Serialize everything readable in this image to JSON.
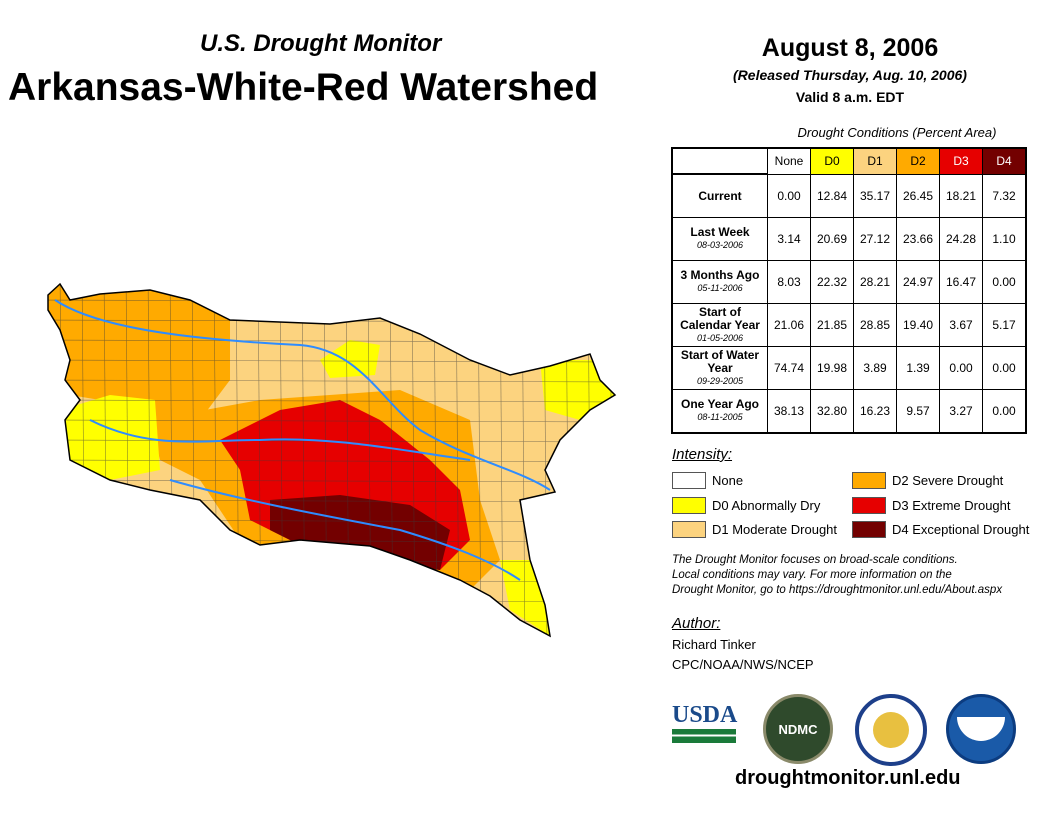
{
  "header": {
    "subtitle": "U.S. Drought Monitor",
    "title": "Arkansas-White-Red Watershed",
    "date": "August 8, 2006",
    "released": "(Released Thursday, Aug. 10, 2006)",
    "valid": "Valid 8 a.m. EDT"
  },
  "table": {
    "caption": "Drought Conditions (Percent Area)",
    "columns": [
      "None",
      "D0",
      "D1",
      "D2",
      "D3",
      "D4"
    ],
    "rows": [
      {
        "label": "Current",
        "date": "",
        "values": [
          "0.00",
          "12.84",
          "35.17",
          "26.45",
          "18.21",
          "7.32"
        ]
      },
      {
        "label": "Last Week",
        "date": "08-03-2006",
        "values": [
          "3.14",
          "20.69",
          "27.12",
          "23.66",
          "24.28",
          "1.10"
        ]
      },
      {
        "label": "3 Months Ago",
        "date": "05-11-2006",
        "values": [
          "8.03",
          "22.32",
          "28.21",
          "24.97",
          "16.47",
          "0.00"
        ]
      },
      {
        "label": "Start of Calendar Year",
        "date": "01-05-2006",
        "values": [
          "21.06",
          "21.85",
          "28.85",
          "19.40",
          "3.67",
          "5.17"
        ]
      },
      {
        "label": "Start of Water Year",
        "date": "09-29-2005",
        "values": [
          "74.74",
          "19.98",
          "3.89",
          "1.39",
          "0.00",
          "0.00"
        ]
      },
      {
        "label": "One Year Ago",
        "date": "08-11-2005",
        "values": [
          "38.13",
          "32.80",
          "16.23",
          "9.57",
          "3.27",
          "0.00"
        ]
      }
    ]
  },
  "legend": {
    "title": "Intensity:",
    "items": [
      {
        "label": "None",
        "color": "#ffffff"
      },
      {
        "label": "D0 Abnormally Dry",
        "color": "#ffff00"
      },
      {
        "label": "D1 Moderate Drought",
        "color": "#fcd37f"
      },
      {
        "label": "D2 Severe Drought",
        "color": "#ffaa00"
      },
      {
        "label": "D3 Extreme Drought",
        "color": "#e60000"
      },
      {
        "label": "D4 Exceptional Drought",
        "color": "#730000"
      }
    ]
  },
  "note": [
    "The Drought Monitor focuses on broad-scale conditions.",
    "Local conditions may vary. For more information on the",
    "Drought Monitor, go to https://droughtmonitor.unl.edu/About.aspx"
  ],
  "author": {
    "title": "Author:",
    "name": "Richard Tinker",
    "org": "CPC/NOAA/NWS/NCEP"
  },
  "logos": {
    "usda": "USDA",
    "ndmc": "NDMC",
    "noaa": "NOAA"
  },
  "footer": {
    "url": "droughtmonitor.unl.edu"
  }
}
